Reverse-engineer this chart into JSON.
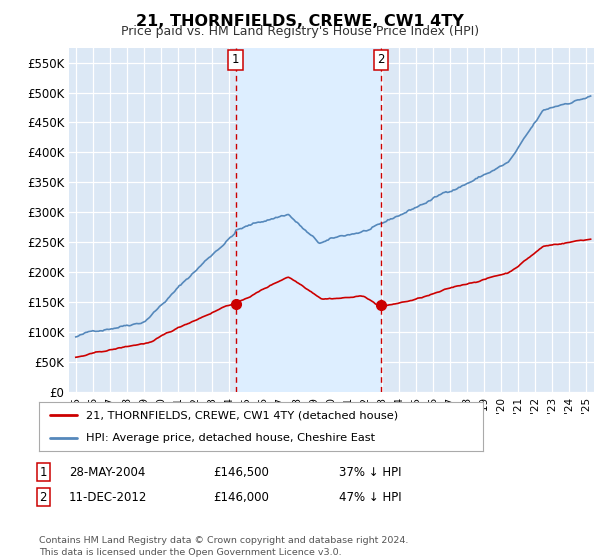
{
  "title": "21, THORNFIELDS, CREWE, CW1 4TY",
  "subtitle": "Price paid vs. HM Land Registry's House Price Index (HPI)",
  "ylabel_ticks": [
    "£0",
    "£50K",
    "£100K",
    "£150K",
    "£200K",
    "£250K",
    "£300K",
    "£350K",
    "£400K",
    "£450K",
    "£500K",
    "£550K"
  ],
  "ytick_values": [
    0,
    50000,
    100000,
    150000,
    200000,
    250000,
    300000,
    350000,
    400000,
    450000,
    500000,
    550000
  ],
  "ylim": [
    0,
    575000
  ],
  "legend_line1": "21, THORNFIELDS, CREWE, CW1 4TY (detached house)",
  "legend_line2": "HPI: Average price, detached house, Cheshire East",
  "line1_color": "#cc0000",
  "line2_color": "#5588bb",
  "highlight_color": "#ddeeff",
  "marker1_date": 2004.4,
  "marker1_value": 146500,
  "marker1_label": "1",
  "marker2_date": 2012.95,
  "marker2_value": 146000,
  "marker2_label": "2",
  "table_data": [
    [
      "1",
      "28-MAY-2004",
      "£146,500",
      "37% ↓ HPI"
    ],
    [
      "2",
      "11-DEC-2012",
      "£146,000",
      "47% ↓ HPI"
    ]
  ],
  "footnote": "Contains HM Land Registry data © Crown copyright and database right 2024.\nThis data is licensed under the Open Government Licence v3.0.",
  "bg_color": "#ffffff",
  "plot_bg_color": "#dce8f5",
  "grid_color": "#ffffff",
  "xmin": 1994.6,
  "xmax": 2025.5
}
